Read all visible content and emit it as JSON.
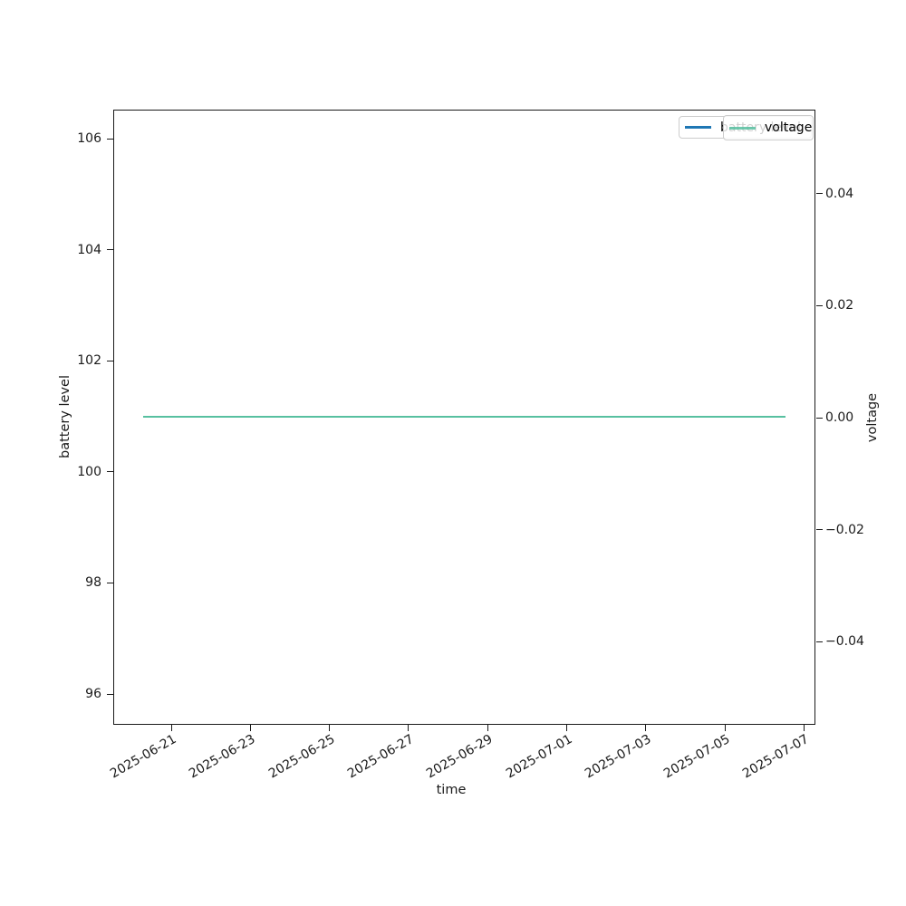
{
  "chart_data": {
    "type": "line",
    "title": "",
    "xlabel": "time",
    "x_tick_labels": [
      "2025-06-21",
      "2025-06-23",
      "2025-06-25",
      "2025-06-27",
      "2025-06-29",
      "2025-07-01",
      "2025-07-03",
      "2025-07-05",
      "2025-07-07"
    ],
    "axes": {
      "left": {
        "label": "battery level",
        "tick_labels": [
          "106",
          "104",
          "102",
          "100",
          "98",
          "96"
        ],
        "ylim": [
          95.45,
          106.55
        ]
      },
      "right": {
        "label": "voltage",
        "tick_labels": [
          "0.04",
          "0.02",
          "0.00",
          "−0.02",
          "−0.04"
        ],
        "ylim": [
          -0.055,
          0.055
        ]
      }
    },
    "series": [
      {
        "name": "battery level",
        "axis": "left",
        "color": "#1f77b4",
        "x_span": [
          "2025-06-20",
          "2025-07-06"
        ],
        "values": [
          101,
          101
        ],
        "note": "constant 101; fully overlapped by voltage line"
      },
      {
        "name": "voltage",
        "axis": "right",
        "color": "#57c0a0",
        "x_span": [
          "2025-06-20",
          "2025-07-06"
        ],
        "values": [
          0.0,
          0.0
        ],
        "note": "constant 0.00; drawn on top"
      }
    ],
    "legend_position": "upper right",
    "grid": false
  },
  "labels": {
    "xlabel": "time",
    "ylabel_left": "battery level",
    "ylabel_right": "voltage"
  },
  "legend": {
    "back": {
      "label": "battery level",
      "color": "#1f77b4"
    },
    "front": {
      "label": "voltage",
      "color": "#57c0a0"
    }
  }
}
